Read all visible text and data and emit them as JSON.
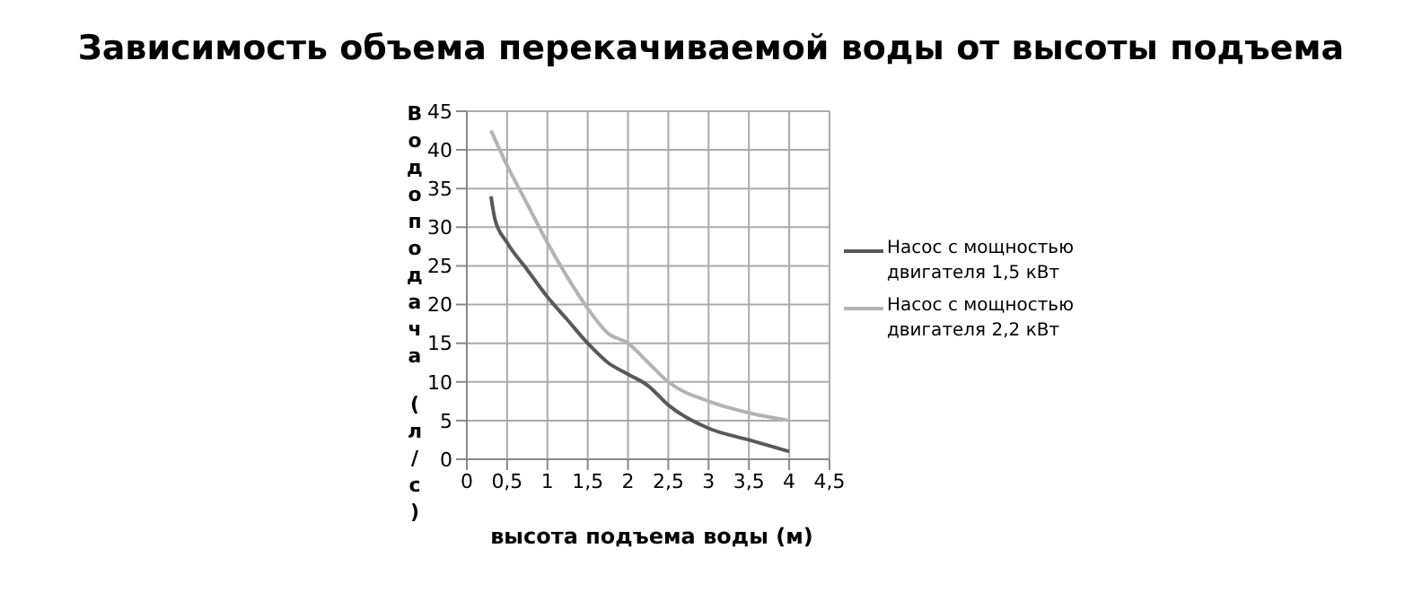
{
  "chart_data": {
    "type": "line",
    "title": "Зависимость объема перекачиваемой воды от высоты подъема",
    "xlabel": "высота подъема воды (м)",
    "ylabel": "Водоподача (л/с)",
    "xlim": [
      0,
      4.5
    ],
    "xticks": [
      0,
      {
        "value": 0.5,
        "label": "0,5"
      },
      1,
      {
        "value": 1.5,
        "label": "1,5"
      },
      2,
      {
        "value": 2.5,
        "label": "2,5"
      },
      3,
      {
        "value": 3.5,
        "label": "3,5"
      },
      4,
      {
        "value": 4.5,
        "label": "4,5"
      }
    ],
    "ylim": [
      0,
      45
    ],
    "yticks": [
      0,
      5,
      10,
      15,
      20,
      25,
      30,
      35,
      40,
      45
    ],
    "grid": true,
    "legend": "right",
    "marker": "none",
    "line_style": "solid",
    "series": [
      {
        "name": "Насос с мощностью двигателя 1,5 кВт",
        "color": "#595959",
        "x": [
          0.3,
          0.35,
          0.5,
          0.75,
          1,
          1.25,
          1.5,
          1.75,
          2,
          2.25,
          2.5,
          3,
          3.5,
          4
        ],
        "values": [
          34,
          31,
          28,
          24.5,
          21,
          18,
          15,
          12.5,
          11,
          9.5,
          7,
          4,
          2.5,
          1
        ]
      },
      {
        "name": "Насос с мощностью двигателя 2,2 кВт",
        "color": "#b3b3b3",
        "x": [
          0.3,
          0.5,
          0.75,
          1,
          1.25,
          1.5,
          1.75,
          2,
          2.25,
          2.5,
          3,
          3.5,
          4
        ],
        "values": [
          42.5,
          38,
          33,
          28,
          23.5,
          19.5,
          16.3,
          15,
          12.5,
          10,
          7.5,
          6,
          5
        ]
      }
    ]
  }
}
